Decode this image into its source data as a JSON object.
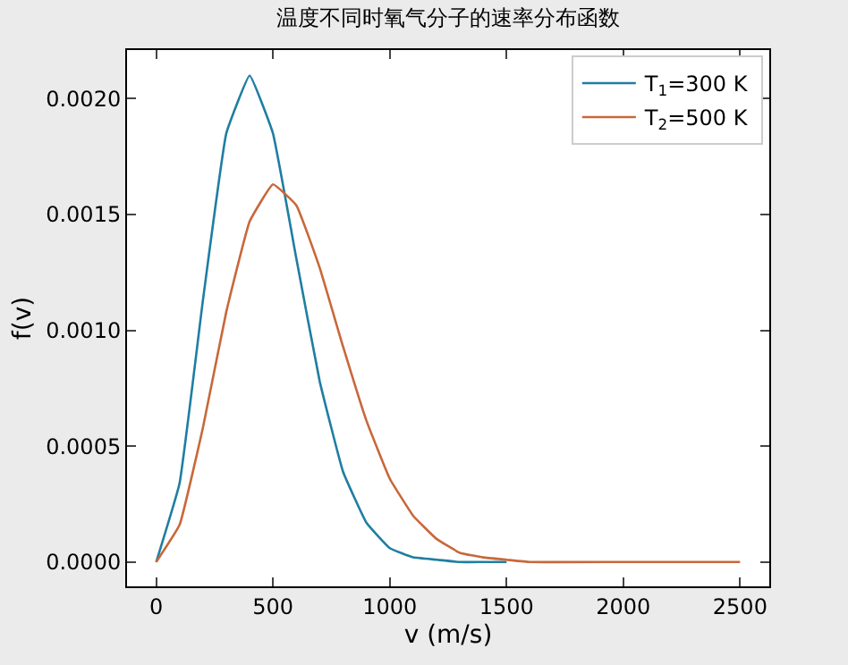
{
  "chart_data": {
    "type": "line",
    "title": "温度不同时氧气分子的速率分布函数",
    "xlabel": "v (m/s)",
    "ylabel": "f(v)",
    "x": [
      0,
      100,
      200,
      300,
      400,
      500,
      600,
      700,
      800,
      900,
      1000,
      1100,
      1200,
      1300,
      1400,
      1500,
      1600,
      2000,
      2500
    ],
    "series": [
      {
        "name": "T$_{1}$=300 K",
        "color": "#1f7ea1",
        "values": [
          0,
          0.00034,
          0.00113,
          0.00185,
          0.0021,
          0.00185,
          0.00131,
          0.00078,
          0.00039,
          0.00017,
          6e-05,
          2e-05,
          1e-05,
          0,
          0,
          0,
          null,
          null,
          null
        ]
      },
      {
        "name": "T$_{2}$=500 K",
        "color": "#c8683a",
        "values": [
          0,
          0.00016,
          0.00058,
          0.00108,
          0.00147,
          0.00163,
          0.00154,
          0.00127,
          0.00093,
          0.00061,
          0.00036,
          0.0002,
          0.0001,
          4e-05,
          2e-05,
          1e-05,
          0,
          0,
          0
        ]
      }
    ],
    "xlim": [
      -125,
      2625
    ],
    "xticks": [
      0,
      500,
      1000,
      1500,
      2000,
      2500
    ],
    "ylim": [
      -0.000105,
      0.00221
    ],
    "yticks": [
      {
        "value": 0,
        "label": "0.0000"
      },
      {
        "value": 0.0005,
        "label": "0.0005"
      },
      {
        "value": 0.001,
        "label": "0.0010"
      },
      {
        "value": 0.0015,
        "label": "0.0015"
      },
      {
        "value": 0.002,
        "label": "0.0020"
      }
    ],
    "legend": "top right",
    "grid": false
  }
}
